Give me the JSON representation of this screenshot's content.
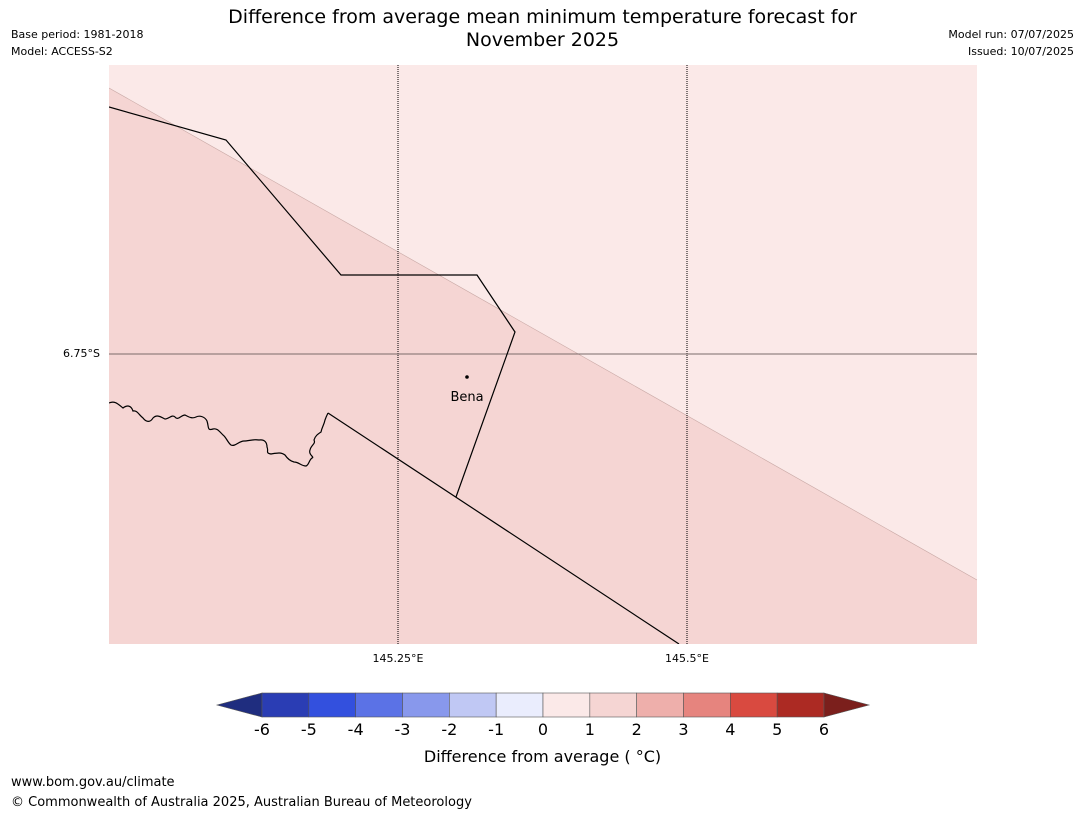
{
  "header": {
    "title_line1": "Difference from average mean minimum temperature forecast for",
    "title_line2": "November 2025",
    "base_period": "Base period: 1981-2018",
    "model": "Model: ACCESS-S2",
    "model_run": "Model run: 07/07/2025",
    "issued": "Issued: 10/07/2025"
  },
  "map": {
    "lat_label": "6.75°S",
    "lon_labels": [
      "145.25°E",
      "145.5°E"
    ],
    "town": "Bena",
    "zone_colors": {
      "zone_1_2": "#f5d5d3",
      "zone_0_1": "#fbe9e8"
    },
    "grid_color": "#000000",
    "graticule_color": "#7a6a6a",
    "boundary_color": "#000000"
  },
  "colorbar": {
    "ticks": [
      "-6",
      "-5",
      "-4",
      "-3",
      "-2",
      "-1",
      "0",
      "1",
      "2",
      "3",
      "4",
      "5",
      "6"
    ],
    "colors": [
      "#1f2d7f",
      "#2a3db4",
      "#3350de",
      "#5b72e6",
      "#8898ec",
      "#c0c8f4",
      "#eaedfd",
      "#fbe9e8",
      "#f5d5d3",
      "#eeafab",
      "#e6847e",
      "#d94a40",
      "#ac2a23",
      "#7b1f1c"
    ],
    "label": "Difference from average ( °C)"
  },
  "footer": {
    "url": "www.bom.gov.au/climate",
    "copyright": "© Commonwealth of Australia 2025, Australian Bureau of Meteorology"
  }
}
